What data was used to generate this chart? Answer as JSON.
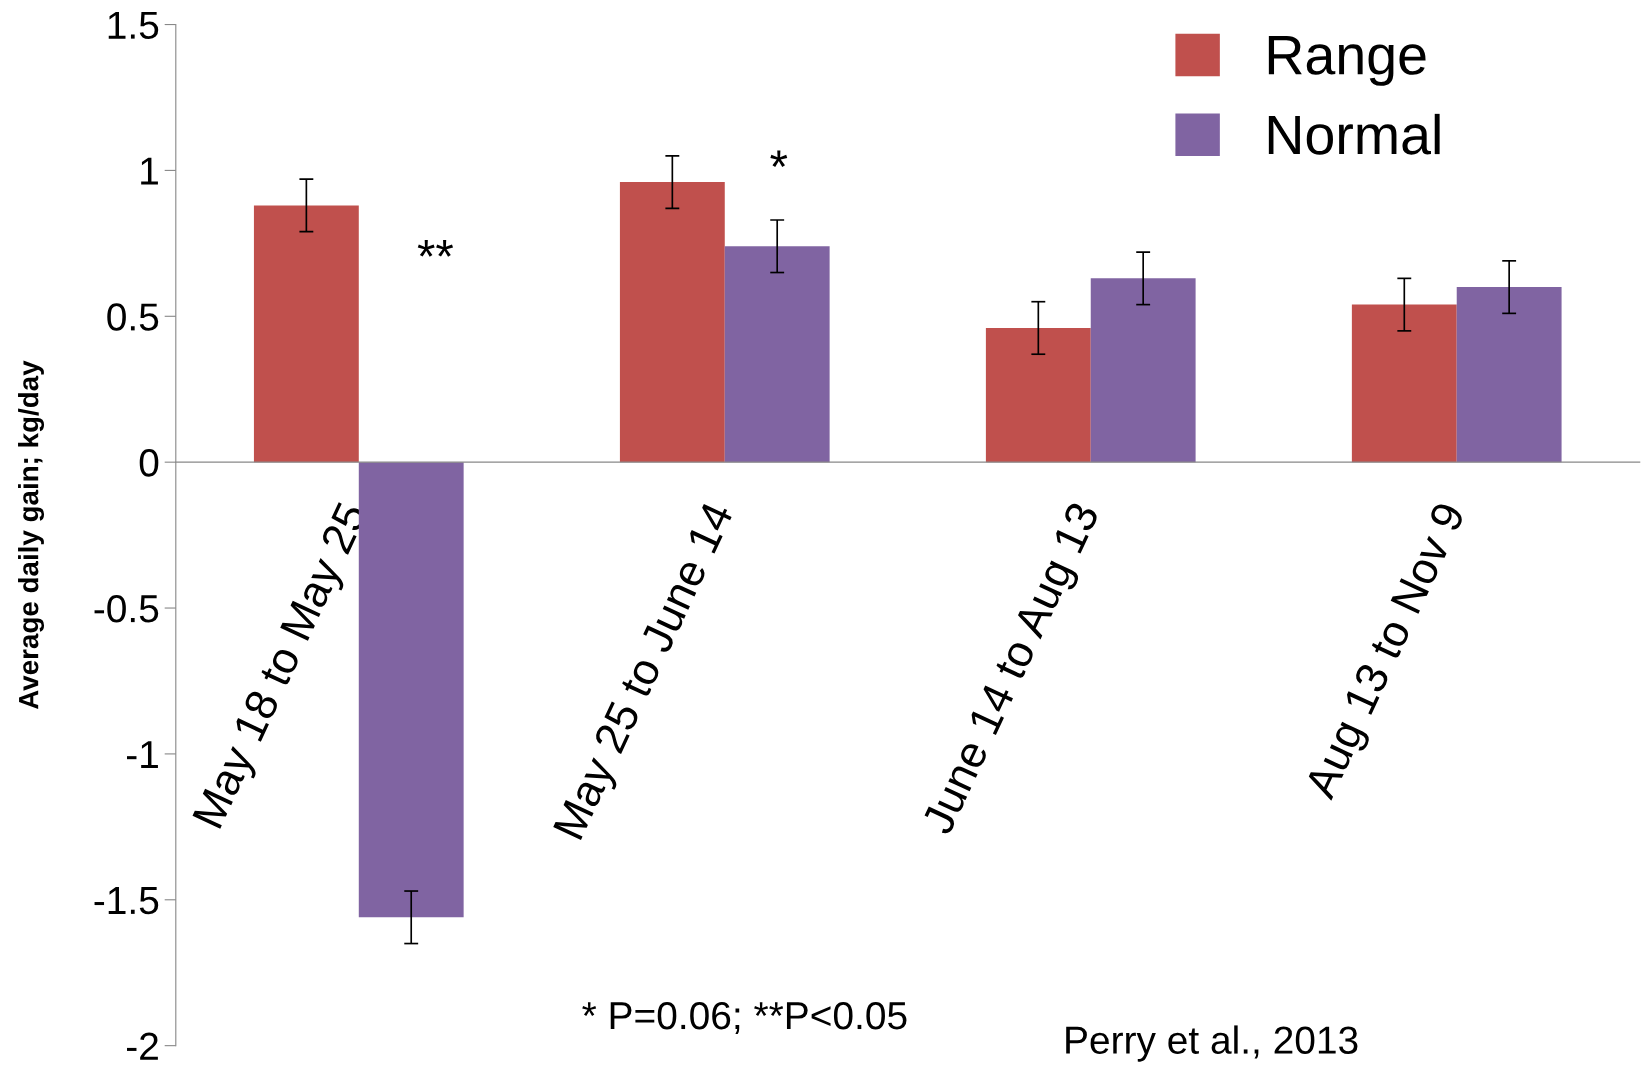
{
  "chart_data": {
    "type": "bar",
    "ylabel": "Average daily gain; kg/day",
    "categories": [
      "May 18 to May 25",
      "May 25 to June 14",
      "June 14 to Aug 13",
      "Aug 13 to Nov 9"
    ],
    "series": [
      {
        "name": "Range",
        "color": "#c0504d",
        "values": [
          0.88,
          0.96,
          0.46,
          0.54
        ],
        "errors": [
          0.09,
          0.09,
          0.09,
          0.09
        ]
      },
      {
        "name": "Normal",
        "color": "#8064a2",
        "values": [
          -1.56,
          0.74,
          0.63,
          0.6
        ],
        "errors": [
          0.09,
          0.09,
          0.09,
          0.09
        ]
      }
    ],
    "ylim": [
      -2,
      1.5
    ],
    "yticks": [
      -2,
      -1.5,
      -1,
      -0.5,
      0,
      0.5,
      1,
      1.5
    ],
    "grid": false,
    "legend": "top right",
    "annotations": [
      "**",
      "*",
      "* P=0.06; **P<0.05",
      "Perry et al., 2013"
    ]
  }
}
